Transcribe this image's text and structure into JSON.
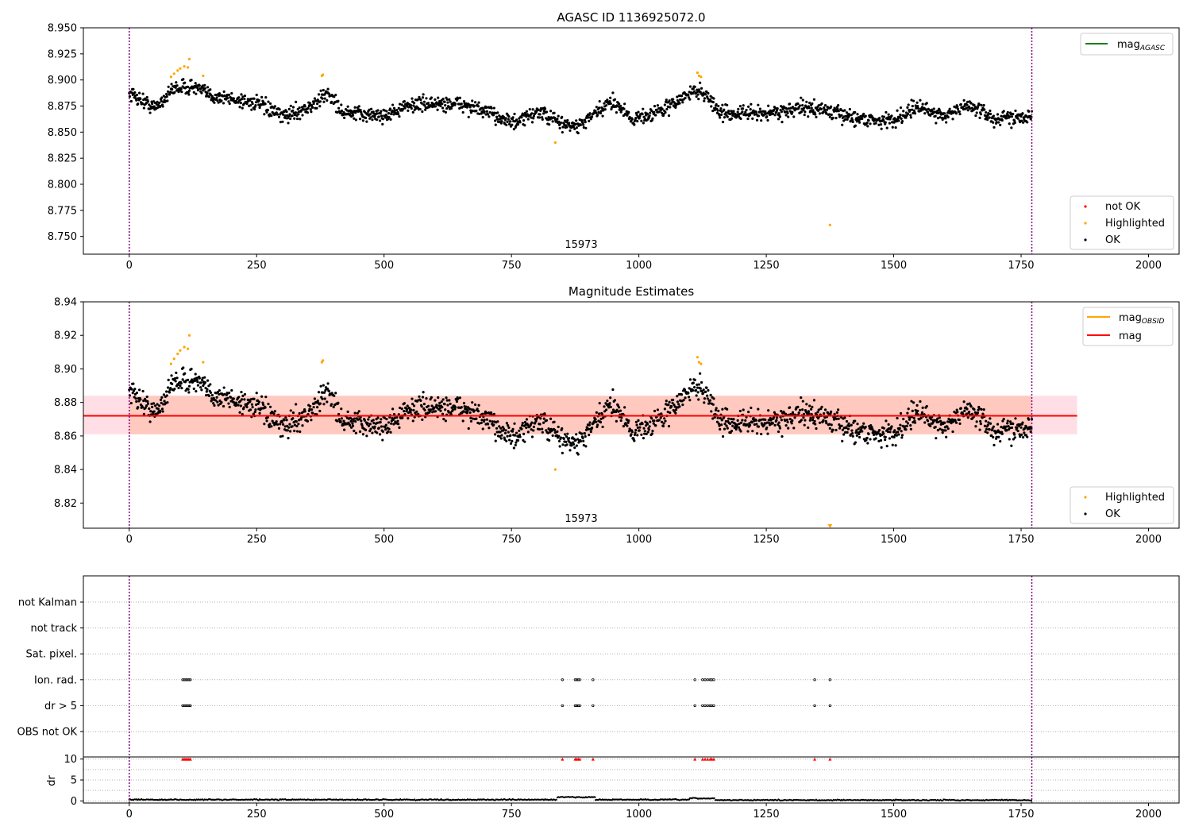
{
  "colors": {
    "ok": "#000000",
    "highlighted": "#ffa500",
    "not_ok": "#ff0000",
    "mag_agasc_line": "#008000",
    "mag_obsid_line": "#ffa500",
    "mag_line": "#ff0000",
    "band_pink": "#ffc0cb",
    "band_orange": "#ffa07a",
    "obs_boundary": "#800080",
    "grid": "#b0b0b0"
  },
  "chart_data": [
    {
      "type": "scatter",
      "title": "AGASC ID 1136925072.0",
      "xlim": [
        -90,
        2060
      ],
      "ylim": [
        8.733,
        8.95
      ],
      "xticks": [
        "0",
        "250",
        "500",
        "750",
        "1000",
        "1250",
        "1500",
        "1750",
        "2000"
      ],
      "yticks": [
        "8.750",
        "8.775",
        "8.800",
        "8.825",
        "8.850",
        "8.875",
        "8.900",
        "8.925",
        "8.950"
      ],
      "grid": false,
      "obs_boundaries": [
        0,
        1771
      ],
      "obsid_label": "15973",
      "legend_lines": [
        {
          "label": "mag",
          "subscript": "AGASC",
          "color": "#008000"
        }
      ],
      "legend_points": [
        {
          "label": "not OK",
          "color": "#ff0000"
        },
        {
          "label": "Highlighted",
          "color": "#ffa500"
        },
        {
          "label": "OK",
          "color": "#000000"
        }
      ],
      "legend_lines_placement": "top-right",
      "legend_points_placement": "bottom-right",
      "series": [
        {
          "name": "OK",
          "x_range": [
            0,
            1771
          ],
          "y_mean": 8.871,
          "y_noise": 0.007,
          "trend_x": [
            0,
            50,
            90,
            130,
            160,
            250,
            300,
            360,
            390,
            420,
            500,
            560,
            650,
            720,
            760,
            800,
            850,
            880,
            950,
            990,
            1050,
            1110,
            1130,
            1160,
            1250,
            1320,
            1360,
            1400,
            1450,
            1500,
            1540,
            1600,
            1650,
            1700,
            1771
          ],
          "trend_y": [
            8.888,
            8.873,
            8.893,
            8.893,
            8.885,
            8.878,
            8.865,
            8.875,
            8.888,
            8.868,
            8.866,
            8.877,
            8.877,
            8.866,
            8.858,
            8.87,
            8.858,
            8.855,
            8.88,
            8.862,
            8.872,
            8.89,
            8.887,
            8.868,
            8.868,
            8.873,
            8.872,
            8.866,
            8.862,
            8.861,
            8.874,
            8.866,
            8.876,
            8.862,
            8.867
          ]
        },
        {
          "name": "Highlighted",
          "x": [
            82,
            88,
            95,
            100,
            108,
            115,
            118,
            145,
            378,
            380,
            836,
            1115,
            1118,
            1122,
            1375
          ],
          "y": [
            8.903,
            8.906,
            8.909,
            8.911,
            8.913,
            8.912,
            8.92,
            8.904,
            8.904,
            8.905,
            8.84,
            8.907,
            8.904,
            8.903,
            8.761
          ]
        }
      ]
    },
    {
      "type": "scatter",
      "title": "Magnitude Estimates",
      "xlim": [
        -90,
        2060
      ],
      "ylim": [
        8.805,
        8.94
      ],
      "xticks": [
        "0",
        "250",
        "500",
        "750",
        "1000",
        "1250",
        "1500",
        "1750",
        "2000"
      ],
      "yticks": [
        "8.82",
        "8.84",
        "8.86",
        "8.88",
        "8.90",
        "8.92",
        "8.94"
      ],
      "grid": false,
      "obs_boundaries": [
        0,
        1771
      ],
      "obsid_label": "15973",
      "mag_value": 8.872,
      "mag_band": [
        8.861,
        8.884
      ],
      "mag_band_x": [
        -90,
        1860
      ],
      "obsid_band_x": [
        0,
        1771
      ],
      "legend_lines": [
        {
          "label": "mag",
          "subscript": "OBSID",
          "color": "#ffa500"
        },
        {
          "label": "mag",
          "subscript": "",
          "color": "#ff0000"
        }
      ],
      "legend_points": [
        {
          "label": "Highlighted",
          "color": "#ffa500"
        },
        {
          "label": "OK",
          "color": "#000000"
        }
      ],
      "legend_lines_placement": "top-right",
      "legend_points_placement": "bottom-right",
      "series": [
        {
          "name": "OK",
          "x_range": [
            0,
            1771
          ],
          "y_mean": 8.871,
          "y_noise": 0.007
        },
        {
          "name": "Highlighted",
          "x": [
            82,
            88,
            95,
            100,
            108,
            115,
            118,
            145,
            378,
            380,
            836,
            1115,
            1118,
            1122
          ],
          "y": [
            8.903,
            8.906,
            8.909,
            8.911,
            8.913,
            8.912,
            8.92,
            8.904,
            8.904,
            8.905,
            8.84,
            8.907,
            8.904,
            8.903
          ]
        },
        {
          "name": "Highlighted-clipped",
          "x": [
            1375
          ],
          "y": [
            8.806
          ]
        }
      ]
    },
    {
      "type": "scatter",
      "title": "",
      "xlim": [
        -90,
        2060
      ],
      "categories": [
        "OBS not OK",
        "dr > 5",
        "Ion. rad.",
        "Sat. pixel.",
        "not track",
        "not Kalman"
      ],
      "grid": true,
      "obs_boundaries": [
        0,
        1771
      ],
      "flag_points": [
        {
          "category": "dr > 5",
          "x": [
            105,
            108,
            111,
            114,
            117,
            120,
            850,
            875,
            878,
            881,
            884,
            910,
            1110,
            1125,
            1130,
            1135,
            1140,
            1143,
            1147,
            1345,
            1375
          ]
        },
        {
          "category": "Ion. rad.",
          "x": [
            105,
            108,
            111,
            114,
            117,
            120,
            850,
            875,
            878,
            881,
            884,
            910,
            1110,
            1125,
            1130,
            1135,
            1140,
            1143,
            1147,
            1345,
            1375
          ]
        }
      ]
    },
    {
      "type": "scatter",
      "title": "",
      "ylabel": "dr",
      "xlim": [
        -90,
        2060
      ],
      "ylim": [
        -0.5,
        10.5
      ],
      "xticks": [
        "0",
        "250",
        "500",
        "750",
        "1000",
        "1250",
        "1500",
        "1750",
        "2000"
      ],
      "yticks": [
        "0",
        "5",
        "10"
      ],
      "grid": true,
      "obs_boundaries": [
        0,
        1771
      ],
      "clipped_markers": {
        "y": 10,
        "x": [
          105,
          108,
          111,
          114,
          117,
          120,
          850,
          875,
          878,
          881,
          884,
          910,
          1110,
          1125,
          1130,
          1135,
          1140,
          1143,
          1147,
          1345,
          1375
        ]
      },
      "dr_segments": [
        {
          "x": [
            0,
            840
          ],
          "y": 0.3
        },
        {
          "x": [
            840,
            915
          ],
          "y": 0.9
        },
        {
          "x": [
            915,
            1100
          ],
          "y": 0.3
        },
        {
          "x": [
            1100,
            1150
          ],
          "y": 0.6
        },
        {
          "x": [
            1150,
            1771
          ],
          "y": 0.2
        }
      ]
    }
  ]
}
